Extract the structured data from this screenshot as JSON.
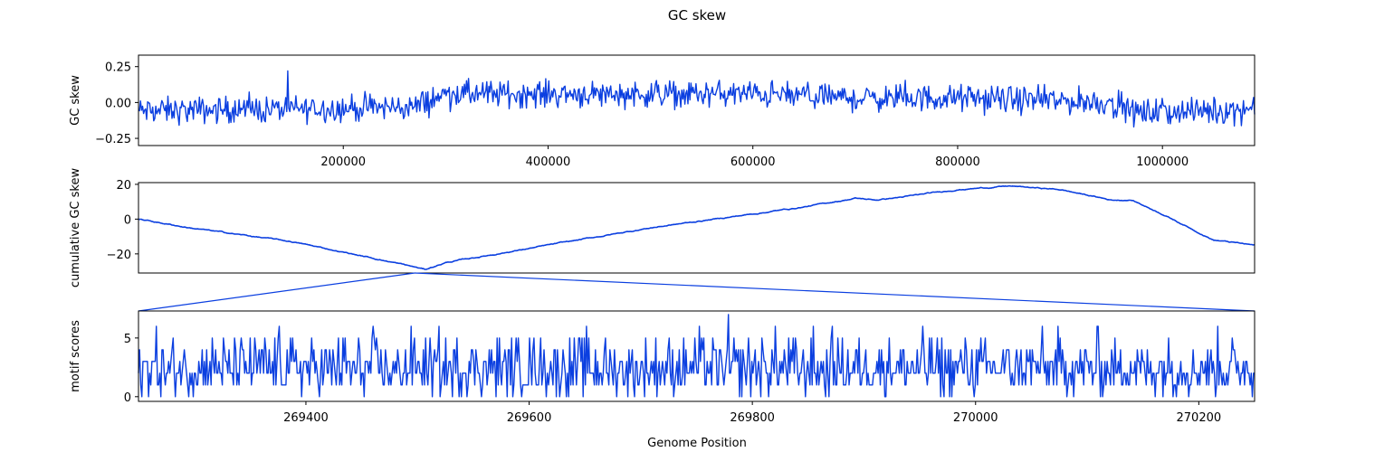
{
  "figure": {
    "title": "GC skew",
    "xlabel": "Genome Position"
  },
  "colors": {
    "line": "#0b3fe0",
    "axes": "#000000",
    "background": "#ffffff"
  },
  "chart_data": [
    {
      "type": "line",
      "panel": "top",
      "ylabel": "GC skew",
      "xlim": [
        0,
        1090000
      ],
      "ylim": [
        -0.3,
        0.33
      ],
      "xticks": [
        200000,
        400000,
        600000,
        800000,
        1000000
      ],
      "xticklabels": [
        "200000",
        "400000",
        "600000",
        "800000",
        "1000000"
      ],
      "yticks": [
        -0.25,
        0.0,
        0.25
      ],
      "yticklabels": [
        "−0.25",
        "0.00",
        "0.25"
      ],
      "grid": false,
      "trend": [
        [
          0,
          -0.06
        ],
        [
          100000,
          -0.05
        ],
        [
          200000,
          -0.04
        ],
        [
          270000,
          -0.03
        ],
        [
          300000,
          0.06
        ],
        [
          400000,
          0.06
        ],
        [
          500000,
          0.06
        ],
        [
          600000,
          0.06
        ],
        [
          700000,
          0.03
        ],
        [
          800000,
          0.03
        ],
        [
          850000,
          0.02
        ],
        [
          950000,
          0.0
        ],
        [
          970000,
          -0.07
        ],
        [
          1050000,
          -0.06
        ],
        [
          1090000,
          -0.04
        ]
      ],
      "noise_amplitude": 0.07,
      "range": [
        -0.27,
        0.29
      ],
      "points": 1100
    },
    {
      "type": "line",
      "panel": "middle",
      "ylabel": "cumulative GC skew",
      "xlim": [
        0,
        1090000
      ],
      "ylim": [
        -31,
        21
      ],
      "yticks": [
        -20,
        0,
        20
      ],
      "yticklabels": [
        "−20",
        "0",
        "20"
      ],
      "grid": false,
      "x": [
        0,
        50000,
        100000,
        150000,
        200000,
        250000,
        280000,
        300000,
        350000,
        400000,
        450000,
        500000,
        550000,
        600000,
        650000,
        700000,
        720000,
        750000,
        800000,
        850000,
        900000,
        950000,
        970000,
        1000000,
        1050000,
        1090000
      ],
      "values": [
        0,
        -5,
        -9,
        -13,
        -19,
        -25,
        -29,
        -25,
        -20,
        -15,
        -10,
        -5,
        -1,
        3,
        7,
        12,
        11,
        13,
        17,
        19,
        17,
        11,
        11,
        3,
        -12,
        -15
      ]
    },
    {
      "type": "line",
      "panel": "bottom",
      "ylabel": "motif scores",
      "xlim": [
        269250,
        270250
      ],
      "ylim": [
        -0.4,
        7.3
      ],
      "xticks": [
        269400,
        269600,
        269800,
        270000,
        270200
      ],
      "xticklabels": [
        "269400",
        "269600",
        "269800",
        "270000",
        "270200"
      ],
      "yticks": [
        0,
        5
      ],
      "yticklabels": [
        "0",
        "5"
      ],
      "grid": false,
      "value_counts": {
        "0": 6,
        "1": 18,
        "2": 30,
        "3": 24,
        "4": 14,
        "5": 6,
        "6": 1.5,
        "7": 0.5
      },
      "range": [
        0,
        7
      ],
      "points": 1000
    }
  ],
  "zoom_link": {
    "from_panel": "middle",
    "to_panel": "bottom",
    "genome_position": 269750
  }
}
